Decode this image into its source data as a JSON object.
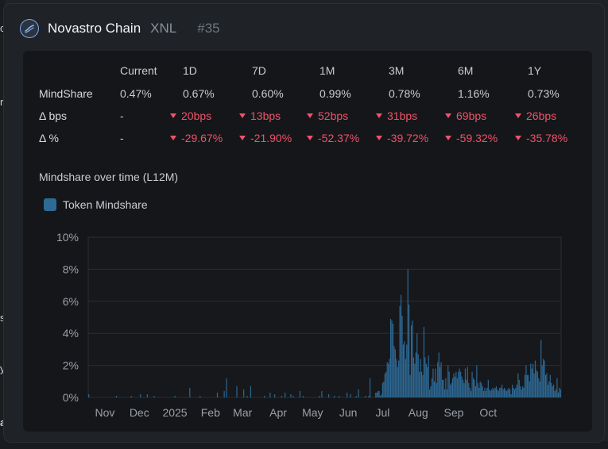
{
  "header": {
    "name": "Novastro Chain",
    "ticker": "XNL",
    "rank": "#35"
  },
  "table": {
    "columns": [
      "Current",
      "1D",
      "7D",
      "1M",
      "3M",
      "6M",
      "1Y"
    ],
    "rows": [
      {
        "label": "MindShare",
        "values": [
          "0.47%",
          "0.67%",
          "0.60%",
          "0.99%",
          "0.78%",
          "1.16%",
          "0.73%"
        ]
      },
      {
        "label": "Δ bps",
        "values": [
          "-",
          "20bps",
          "13bps",
          "52bps",
          "31bps",
          "69bps",
          "26bps"
        ]
      },
      {
        "label": "Δ %",
        "values": [
          "-",
          "-29.67%",
          "-21.90%",
          "-52.37%",
          "-39.72%",
          "-59.32%",
          "-35.78%"
        ]
      }
    ],
    "down_color": "#f0526a"
  },
  "chart_section": {
    "title": "Mindshare over time (L12M)"
  },
  "chart_data": {
    "type": "bar",
    "legend": "Token Mindshare",
    "legend_position": "top-left",
    "grid": true,
    "bar_color": "#2d6a96",
    "ylim": [
      0,
      10
    ],
    "y_ticks": [
      "0%",
      "2%",
      "4%",
      "6%",
      "8%",
      "10%"
    ],
    "x_ticks": [
      "Nov",
      "Dec",
      "2025",
      "Feb",
      "Mar",
      "Apr",
      "May",
      "Jun",
      "Jul",
      "Aug",
      "Sep",
      "Oct"
    ],
    "x_tick_days": [
      14,
      44,
      75,
      106,
      134,
      165,
      195,
      226,
      256,
      287,
      318,
      348
    ],
    "series": [
      {
        "name": "Token Mindshare",
        "unit": "%",
        "day_offset_start": 0,
        "values": [
          0.2,
          0,
          0,
          0,
          0,
          0,
          0,
          0,
          0,
          0,
          0,
          0,
          0,
          0,
          0,
          0,
          0,
          0,
          0,
          0,
          0,
          0,
          0,
          0,
          0.1,
          0,
          0,
          0,
          0,
          0,
          0,
          0,
          0,
          0,
          0,
          0,
          0,
          0.1,
          0,
          0,
          0,
          0,
          0,
          0,
          0,
          0.2,
          0,
          0,
          0,
          0,
          0,
          0.2,
          0,
          0,
          0,
          0,
          0,
          0.1,
          0,
          0,
          0,
          0,
          0,
          0,
          0,
          0,
          0,
          0,
          0,
          0,
          0,
          0,
          0,
          0,
          0,
          0.1,
          0,
          0,
          0,
          0,
          0,
          0,
          0,
          0,
          0,
          0,
          0,
          0,
          0.6,
          0,
          0,
          0,
          0,
          0,
          0,
          0,
          0,
          0.1,
          0,
          0,
          0,
          0,
          0,
          0,
          0,
          0,
          0,
          0,
          0,
          0,
          0,
          0,
          0.3,
          0,
          0,
          0,
          0,
          0,
          0.4,
          0,
          1.2,
          0,
          0,
          0,
          0,
          0,
          0,
          0,
          0,
          0.7,
          0,
          0,
          0,
          0,
          0,
          0.5,
          0,
          0,
          0.1,
          0,
          0,
          0.7,
          0,
          0,
          0,
          0,
          0,
          0,
          0,
          0,
          0,
          0,
          0,
          0.1,
          0,
          0,
          0,
          0,
          0.3,
          0,
          0,
          0,
          0.2,
          0,
          0,
          0,
          0,
          0,
          0.1,
          0,
          0,
          0.3,
          0,
          0,
          0,
          0,
          0.2,
          0,
          0.1,
          0,
          0,
          0,
          0,
          0,
          0.4,
          0,
          0,
          0.1,
          0,
          0,
          0,
          0,
          0,
          0,
          0,
          0,
          0,
          0,
          0,
          0,
          0,
          0.1,
          0,
          0.4,
          0,
          0,
          0,
          0,
          0,
          0.2,
          0,
          0,
          0,
          0,
          0.1,
          0,
          0,
          0,
          0.1,
          0,
          0,
          0,
          0,
          0,
          0,
          0.3,
          0,
          0,
          0.2,
          0,
          0,
          0,
          0,
          0.1,
          0,
          0.5,
          0,
          0,
          0,
          0,
          0,
          0.1,
          0,
          0,
          0.1,
          1.2,
          0,
          0,
          0,
          0,
          0.3,
          0.3,
          0.4,
          0.4,
          0.1,
          0.2,
          0.9,
          1.0,
          1.5,
          1.6,
          2.2,
          2.1,
          2.4,
          4.9,
          4.8,
          4.6,
          3.2,
          3.0,
          2.4,
          1.9,
          2.3,
          5.7,
          6.4,
          5.1,
          3.3,
          3.5,
          2.4,
          3.3,
          8.0,
          5.8,
          1.4,
          4.5,
          4.8,
          2.5,
          2.1,
          2.8,
          4.0,
          2.7,
          1.6,
          2.4,
          1.6,
          1.4,
          4.4,
          2.5,
          2.1,
          1.9,
          2.6,
          0.5,
          0.7,
          1.2,
          1.8,
          1.0,
          1.8,
          0.9,
          2.2,
          2.8,
          1.9,
          2.2,
          1.1,
          1.1,
          0.5,
          1.2,
          0.5,
          2.0,
          1.6,
          0.8,
          0.9,
          1.2,
          1.5,
          1.3,
          1.6,
          1.2,
          1.6,
          1.8,
          1.6,
          1.3,
          1.1,
          0.9,
          1.8,
          1.1,
          1.9,
          0.9,
          0.6,
          0.4,
          1.6,
          1.2,
          1.1,
          0.7,
          2.0,
          0.9,
          0.6,
          1.0,
          0.9,
          0.7,
          0.4,
          0.6,
          0.4,
          0.6,
          1.1,
          0.5,
          0.4,
          0.5,
          0.6,
          0.5,
          0.6,
          0.7,
          0.5,
          0.4,
          0.6,
          0.6,
          0.8,
          0.5,
          0.6,
          0.5,
          0.4,
          0.5,
          0.6,
          0.5,
          0.2,
          0.8,
          0.6,
          0.5,
          0.6,
          0.8,
          1.5,
          1.1,
          0.7,
          0.5,
          0.7,
          0.6,
          1.4,
          2.0,
          1.4,
          1.4,
          1.0,
          2.1,
          1.8,
          2.1,
          1.5,
          2.3,
          1.7,
          1.6,
          1.2,
          1.0,
          3.6,
          2.0,
          2.4,
          2.3,
          1.4,
          1.5,
          0.8,
          1.0,
          1.4,
          0.9,
          0.7,
          0.8,
          0.4,
          0.5,
          1.2,
          0.3,
          0.6,
          0.5
        ]
      }
    ]
  }
}
